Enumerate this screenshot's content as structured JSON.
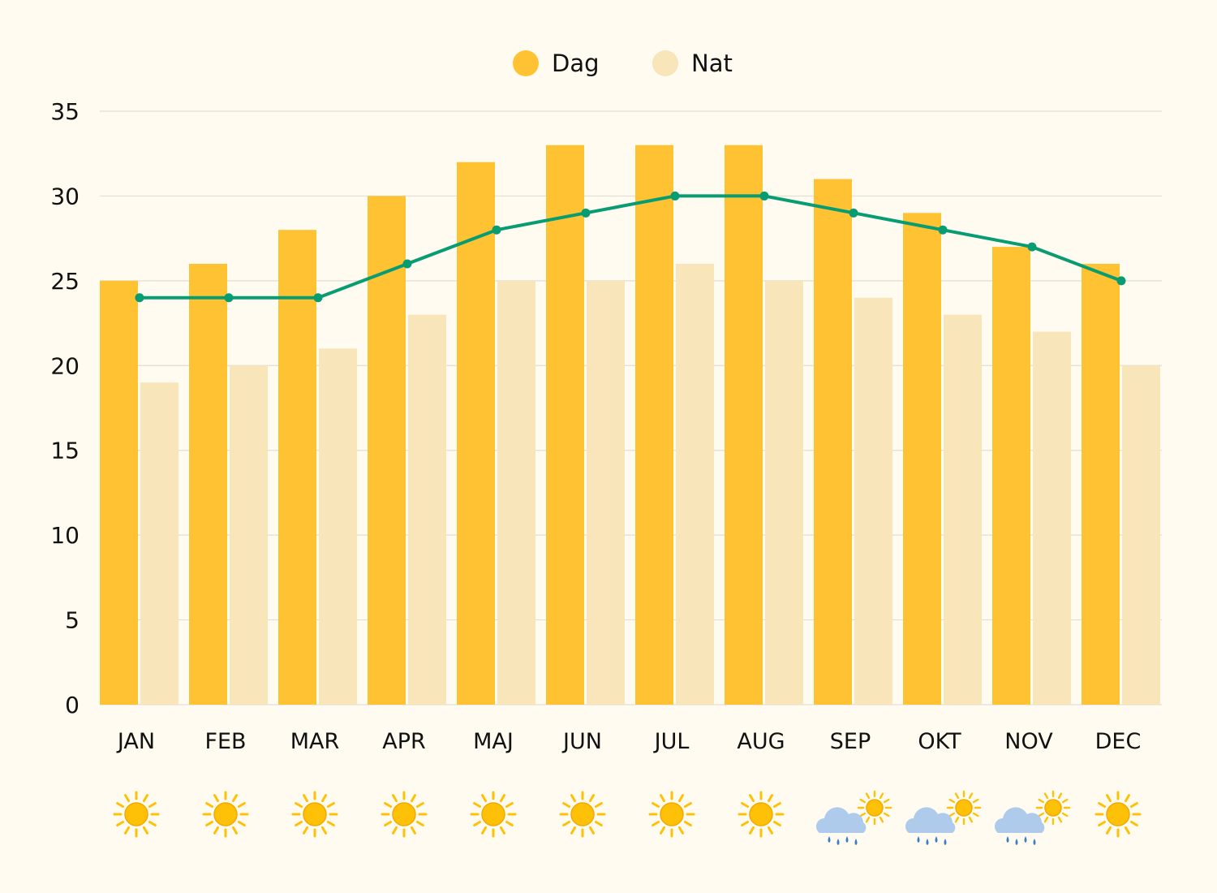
{
  "chart_data": {
    "type": "bar",
    "categories": [
      "JAN",
      "FEB",
      "MAR",
      "APR",
      "MAJ",
      "JUN",
      "JUL",
      "AUG",
      "SEP",
      "OKT",
      "NOV",
      "DEC"
    ],
    "series": [
      {
        "name": "Dag",
        "type": "bar",
        "values": [
          25,
          26,
          28,
          30,
          32,
          33,
          33,
          33,
          31,
          29,
          27,
          26
        ],
        "color": "#FFC233"
      },
      {
        "name": "Nat",
        "type": "bar",
        "values": [
          19,
          20,
          21,
          23,
          25,
          25,
          26,
          25,
          24,
          23,
          22,
          20
        ],
        "color": "#F9E5BA"
      },
      {
        "name": "line",
        "type": "line",
        "values": [
          24,
          24,
          24,
          26,
          28,
          29,
          30,
          30,
          29,
          28,
          27,
          25
        ],
        "color": "#089C72"
      }
    ],
    "ylim": [
      0,
      35
    ],
    "yticks": [
      0,
      5,
      10,
      15,
      20,
      25,
      30,
      35
    ],
    "legend": {
      "position": "top-center",
      "entries": [
        "Dag",
        "Nat"
      ]
    },
    "grid": true,
    "weather_icons": [
      "sun-icon",
      "sun-icon",
      "sun-icon",
      "sun-icon",
      "sun-icon",
      "sun-icon",
      "sun-icon",
      "sun-icon",
      "sun-rain-cloud-icon",
      "sun-rain-cloud-icon",
      "sun-rain-cloud-icon",
      "sun-icon"
    ]
  },
  "colors": {
    "background": "#FFFBF0",
    "grid": "#E2DED3",
    "sun": "#FFC107",
    "cloud": "#AFCBEB",
    "rain": "#3B7FC4"
  }
}
